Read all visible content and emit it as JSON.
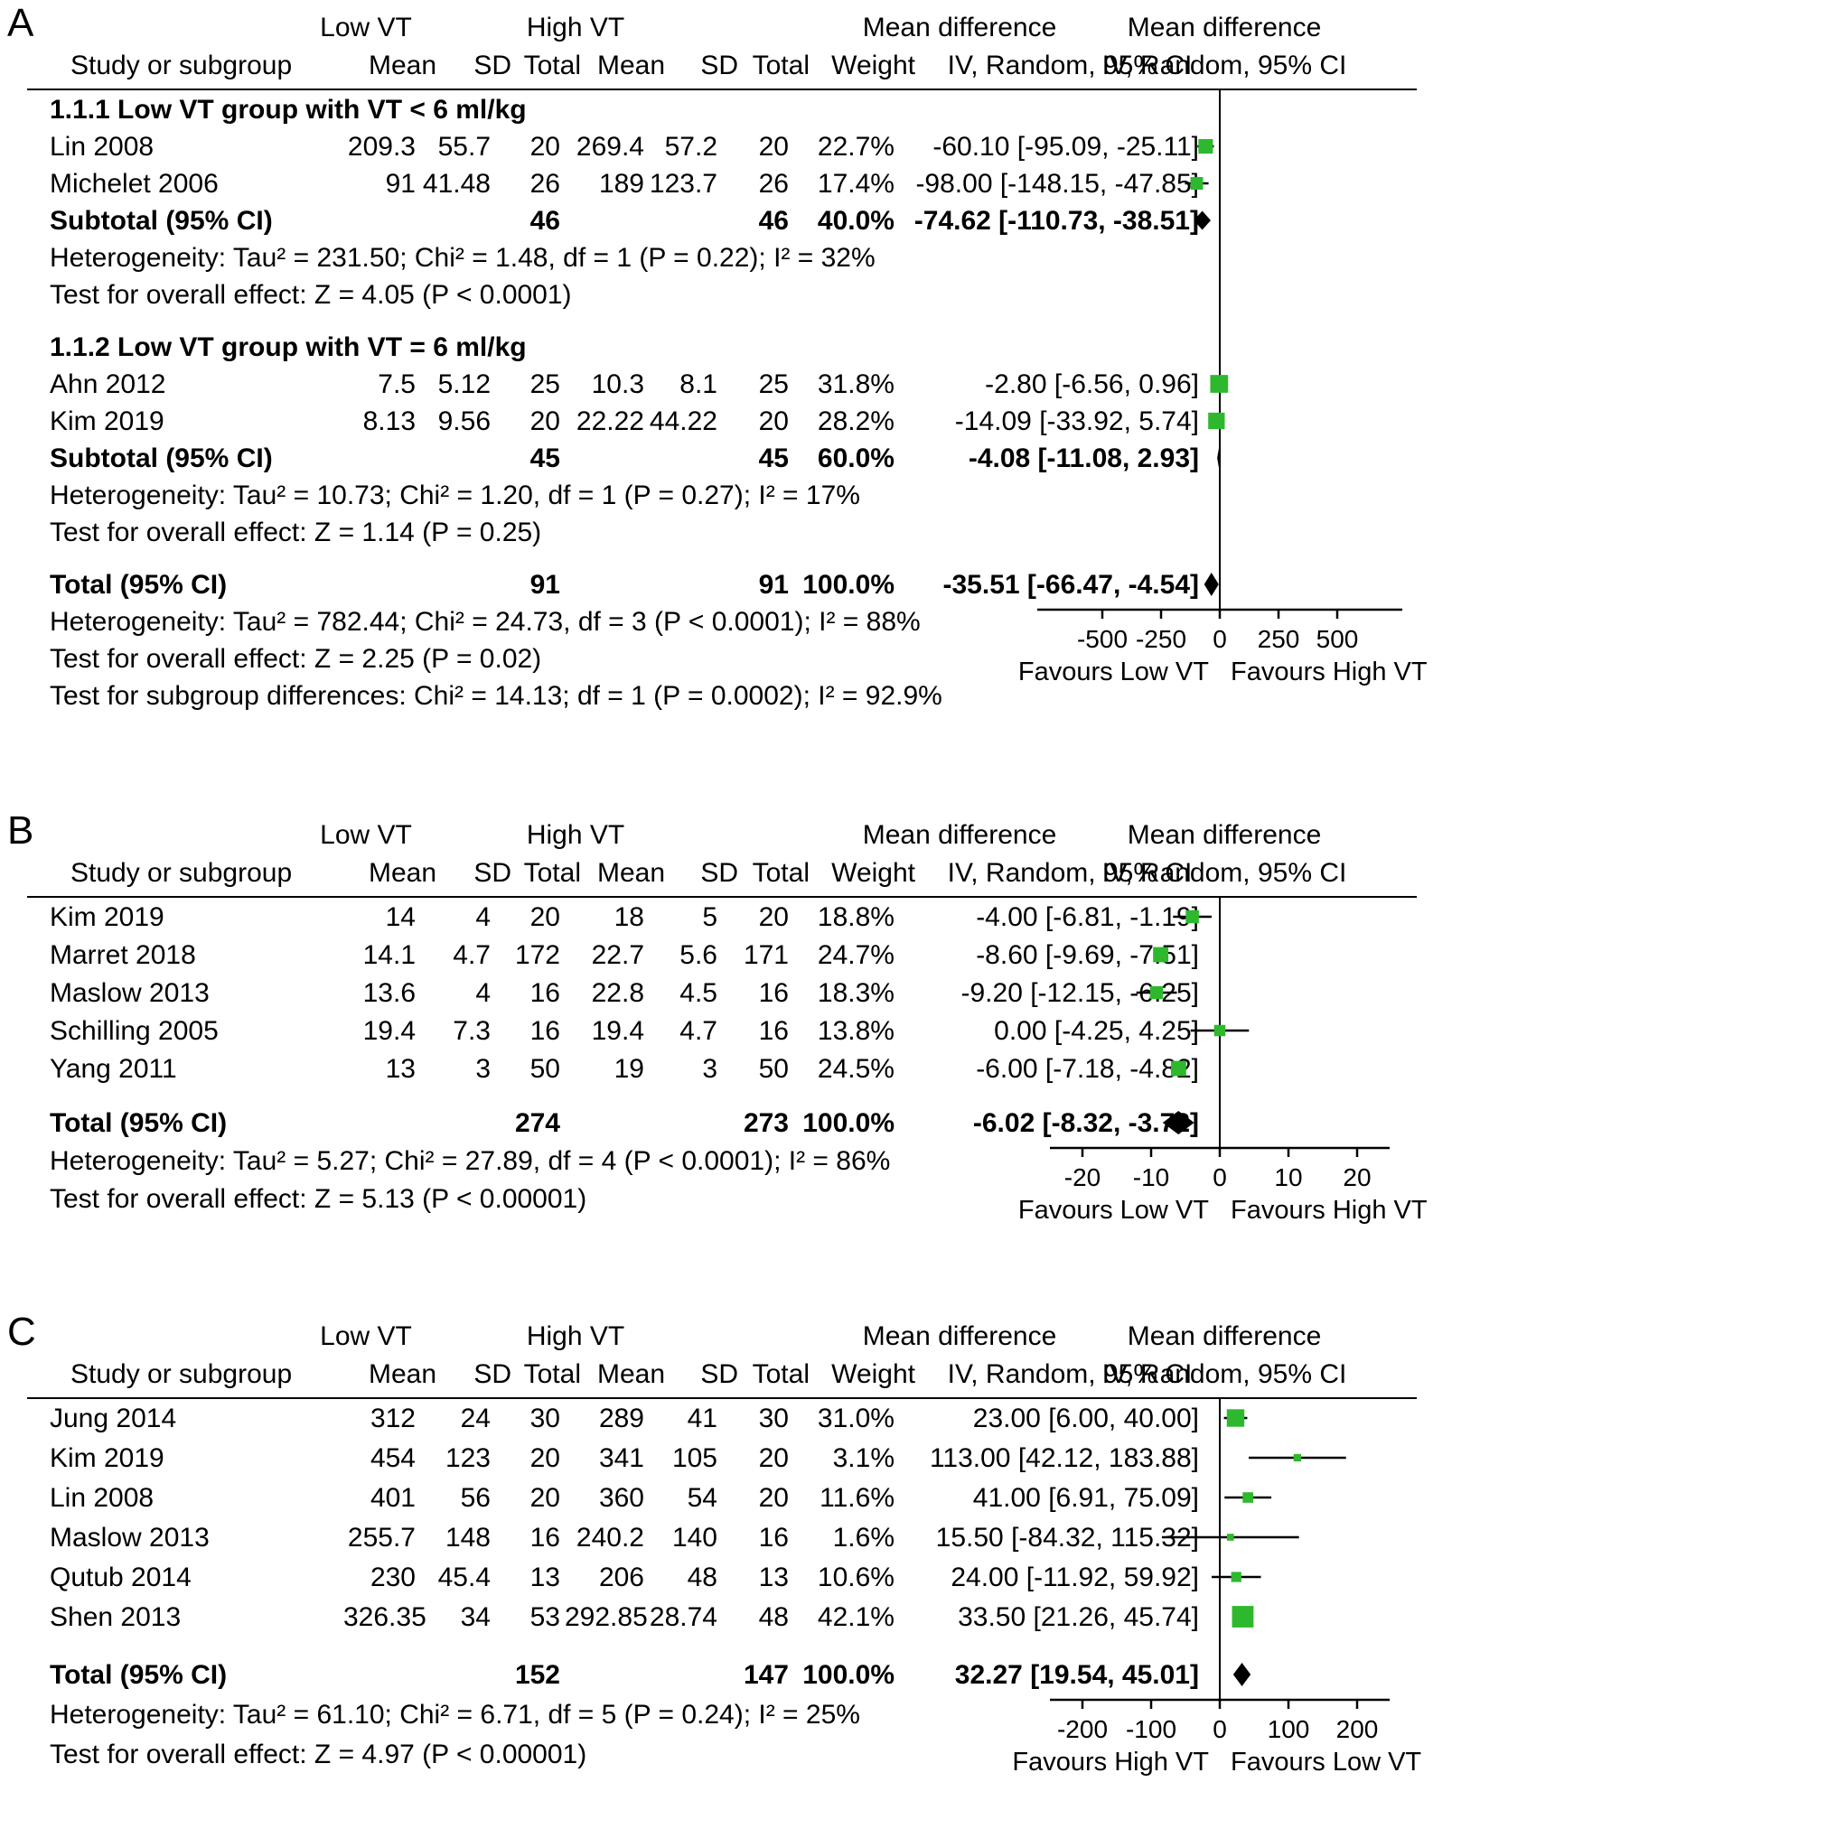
{
  "figure_type": "forest_plot_meta_analysis",
  "colors": {
    "marker": "#2eb82e",
    "line": "#000000",
    "text": "#000000",
    "background": "#ffffff"
  },
  "chart_data": {
    "type": "forest",
    "marker_color": "#2eb82e",
    "panels": [
      {
        "label": "A",
        "group1_header": "Low VT",
        "group2_header": "High VT",
        "md_header": "Mean difference",
        "method_header": "IV, Random, 95% CI",
        "study_header": "Study or subgroup",
        "col_headers": [
          "Mean",
          "SD",
          "Total",
          "Mean",
          "SD",
          "Total",
          "Weight"
        ],
        "rows": [
          {
            "type": "subgroup",
            "text": "1.1.1 Low VT group with VT < 6 ml/kg"
          },
          {
            "type": "study",
            "study": "Lin 2008",
            "m1": "209.3",
            "sd1": "55.7",
            "t1": "20",
            "m2": "269.4",
            "sd2": "57.2",
            "t2": "20",
            "w": "22.7%",
            "ci": "-60.10 [-95.09, -25.11]",
            "est": -60.1,
            "lo": -95.09,
            "hi": -25.11,
            "weight": 22.7
          },
          {
            "type": "study",
            "study": "Michelet 2006",
            "m1": "91",
            "sd1": "41.48",
            "t1": "26",
            "m2": "189",
            "sd2": "123.7",
            "t2": "26",
            "w": "17.4%",
            "ci": "-98.00 [-148.15, -47.85]",
            "est": -98.0,
            "lo": -148.15,
            "hi": -47.85,
            "weight": 17.4
          },
          {
            "type": "subtotal",
            "study": "Subtotal (95% CI)",
            "t1": "46",
            "t2": "46",
            "w": "40.0%",
            "ci": "-74.62 [-110.73, -38.51]",
            "est": -74.62,
            "lo": -110.73,
            "hi": -38.51
          },
          {
            "type": "note",
            "name": "heterogeneity-note",
            "text": "Heterogeneity: Tau² = 231.50; Chi² = 1.48, df = 1 (P = 0.22); I² = 32%"
          },
          {
            "type": "note",
            "name": "overall-effect-note",
            "text": "Test for overall effect: Z = 4.05 (P < 0.0001)"
          },
          {
            "type": "gap"
          },
          {
            "type": "subgroup",
            "text": "1.1.2 Low VT group with VT = 6 ml/kg"
          },
          {
            "type": "study",
            "study": "Ahn 2012",
            "m1": "7.5",
            "sd1": "5.12",
            "t1": "25",
            "m2": "10.3",
            "sd2": "8.1",
            "t2": "25",
            "w": "31.8%",
            "ci": "-2.80 [-6.56, 0.96]",
            "est": -2.8,
            "lo": -6.56,
            "hi": 0.96,
            "weight": 31.8
          },
          {
            "type": "study",
            "study": "Kim 2019",
            "m1": "8.13",
            "sd1": "9.56",
            "t1": "20",
            "m2": "22.22",
            "sd2": "44.22",
            "t2": "20",
            "w": "28.2%",
            "ci": "-14.09 [-33.92, 5.74]",
            "est": -14.09,
            "lo": -33.92,
            "hi": 5.74,
            "weight": 28.2
          },
          {
            "type": "subtotal",
            "study": "Subtotal (95% CI)",
            "t1": "45",
            "t2": "45",
            "w": "60.0%",
            "ci": "-4.08 [-11.08, 2.93]",
            "est": -4.08,
            "lo": -11.08,
            "hi": 2.93
          },
          {
            "type": "note",
            "name": "heterogeneity-note",
            "text": "Heterogeneity: Tau² = 10.73; Chi² = 1.20, df = 1 (P = 0.27); I² = 17%"
          },
          {
            "type": "note",
            "name": "overall-effect-note",
            "text": "Test for overall effect: Z = 1.14 (P = 0.25)"
          },
          {
            "type": "gap"
          },
          {
            "type": "total",
            "study": "Total (95% CI)",
            "t1": "91",
            "t2": "91",
            "w": "100.0%",
            "ci": "-35.51 [-66.47, -4.54]",
            "est": -35.51,
            "lo": -66.47,
            "hi": -4.54
          },
          {
            "type": "note",
            "name": "heterogeneity-note",
            "text": "Heterogeneity: Tau² = 782.44; Chi² = 24.73, df = 3 (P < 0.0001); I² = 88%"
          },
          {
            "type": "note",
            "name": "overall-effect-note",
            "text": "Test for overall effect: Z = 2.25 (P = 0.02)"
          },
          {
            "type": "note",
            "name": "subgroup-difference-note",
            "text": "Test for subgroup differences: Chi² = 14.13; df = 1 (P = 0.0002); I² = 92.9%"
          }
        ],
        "axis": {
          "ticks": [
            -500,
            -250,
            0,
            250,
            500
          ],
          "tick_labels": [
            "-500",
            "-250",
            "0",
            "250",
            "500"
          ],
          "favours_left": "Favours Low VT",
          "favours_right": "Favours High VT"
        }
      },
      {
        "label": "B",
        "group1_header": "Low VT",
        "group2_header": "High VT",
        "md_header": "Mean difference",
        "method_header": "IV, Random, 95% CI",
        "study_header": "Study or subgroup",
        "col_headers": [
          "Mean",
          "SD",
          "Total",
          "Mean",
          "SD",
          "Total",
          "Weight"
        ],
        "rows": [
          {
            "type": "study",
            "study": "Kim 2019",
            "m1": "14",
            "sd1": "4",
            "t1": "20",
            "m2": "18",
            "sd2": "5",
            "t2": "20",
            "w": "18.8%",
            "ci": "-4.00 [-6.81, -1.19]",
            "est": -4.0,
            "lo": -6.81,
            "hi": -1.19,
            "weight": 18.8
          },
          {
            "type": "study",
            "study": "Marret 2018",
            "m1": "14.1",
            "sd1": "4.7",
            "t1": "172",
            "m2": "22.7",
            "sd2": "5.6",
            "t2": "171",
            "w": "24.7%",
            "ci": "-8.60 [-9.69, -7.51]",
            "est": -8.6,
            "lo": -9.69,
            "hi": -7.51,
            "weight": 24.7
          },
          {
            "type": "study",
            "study": "Maslow 2013",
            "m1": "13.6",
            "sd1": "4",
            "t1": "16",
            "m2": "22.8",
            "sd2": "4.5",
            "t2": "16",
            "w": "18.3%",
            "ci": "-9.20 [-12.15, -6.25]",
            "est": -9.2,
            "lo": -12.15,
            "hi": -6.25,
            "weight": 18.3
          },
          {
            "type": "study",
            "study": "Schilling 2005",
            "m1": "19.4",
            "sd1": "7.3",
            "t1": "16",
            "m2": "19.4",
            "sd2": "4.7",
            "t2": "16",
            "w": "13.8%",
            "ci": "0.00 [-4.25, 4.25]",
            "est": 0.0,
            "lo": -4.25,
            "hi": 4.25,
            "weight": 13.8
          },
          {
            "type": "study",
            "study": "Yang 2011",
            "m1": "13",
            "sd1": "3",
            "t1": "50",
            "m2": "19",
            "sd2": "3",
            "t2": "50",
            "w": "24.5%",
            "ci": "-6.00 [-7.18, -4.82]",
            "est": -6.0,
            "lo": -7.18,
            "hi": -4.82,
            "weight": 24.5
          },
          {
            "type": "gap"
          },
          {
            "type": "total",
            "study": "Total (95% CI)",
            "t1": "274",
            "t2": "273",
            "w": "100.0%",
            "ci": "-6.02 [-8.32, -3.72]",
            "est": -6.02,
            "lo": -8.32,
            "hi": -3.72
          },
          {
            "type": "note",
            "name": "heterogeneity-note",
            "text": "Heterogeneity: Tau² = 5.27; Chi² = 27.89, df = 4 (P < 0.0001); I² = 86%"
          },
          {
            "type": "note",
            "name": "overall-effect-note",
            "text": "Test for overall effect: Z = 5.13 (P < 0.00001)"
          }
        ],
        "axis": {
          "ticks": [
            -20,
            -10,
            0,
            10,
            20
          ],
          "tick_labels": [
            "-20",
            "-10",
            "0",
            "10",
            "20"
          ],
          "favours_left": "Favours Low VT",
          "favours_right": "Favours High VT"
        }
      },
      {
        "label": "C",
        "group1_header": "Low VT",
        "group2_header": "High VT",
        "md_header": "Mean difference",
        "method_header": "IV, Random, 95% CI",
        "study_header": "Study or subgroup",
        "col_headers": [
          "Mean",
          "SD",
          "Total",
          "Mean",
          "SD",
          "Total",
          "Weight"
        ],
        "rows": [
          {
            "type": "study",
            "study": "Jung 2014",
            "m1": "312",
            "sd1": "24",
            "t1": "30",
            "m2": "289",
            "sd2": "41",
            "t2": "30",
            "w": "31.0%",
            "ci": "23.00 [6.00, 40.00]",
            "est": 23.0,
            "lo": 6.0,
            "hi": 40.0,
            "weight": 31.0
          },
          {
            "type": "study",
            "study": "Kim 2019",
            "m1": "454",
            "sd1": "123",
            "t1": "20",
            "m2": "341",
            "sd2": "105",
            "t2": "20",
            "w": "3.1%",
            "ci": "113.00 [42.12, 183.88]",
            "est": 113.0,
            "lo": 42.12,
            "hi": 183.88,
            "weight": 3.1
          },
          {
            "type": "study",
            "study": "Lin 2008",
            "m1": "401",
            "sd1": "56",
            "t1": "20",
            "m2": "360",
            "sd2": "54",
            "t2": "20",
            "w": "11.6%",
            "ci": "41.00 [6.91, 75.09]",
            "est": 41.0,
            "lo": 6.91,
            "hi": 75.09,
            "weight": 11.6
          },
          {
            "type": "study",
            "study": "Maslow 2013",
            "m1": "255.7",
            "sd1": "148",
            "t1": "16",
            "m2": "240.2",
            "sd2": "140",
            "t2": "16",
            "w": "1.6%",
            "ci": "15.50 [-84.32, 115.32]",
            "est": 15.5,
            "lo": -84.32,
            "hi": 115.32,
            "weight": 1.6
          },
          {
            "type": "study",
            "study": "Qutub 2014",
            "m1": "230",
            "sd1": "45.4",
            "t1": "13",
            "m2": "206",
            "sd2": "48",
            "t2": "13",
            "w": "10.6%",
            "ci": "24.00 [-11.92, 59.92]",
            "est": 24.0,
            "lo": -11.92,
            "hi": 59.92,
            "weight": 10.6
          },
          {
            "type": "study",
            "study": "Shen 2013",
            "m1": "326.35",
            "sd1": "34",
            "t1": "53",
            "m2": "292.85",
            "sd2": "28.74",
            "t2": "48",
            "w": "42.1%",
            "ci": "33.50 [21.26, 45.74]",
            "est": 33.5,
            "lo": 21.26,
            "hi": 45.74,
            "weight": 42.1
          },
          {
            "type": "gap"
          },
          {
            "type": "total",
            "study": "Total (95% CI)",
            "t1": "152",
            "t2": "147",
            "w": "100.0%",
            "ci": "32.27 [19.54, 45.01]",
            "est": 32.27,
            "lo": 19.54,
            "hi": 45.01
          },
          {
            "type": "note",
            "name": "heterogeneity-note",
            "text": "Heterogeneity: Tau² = 61.10; Chi² = 6.71, df = 5 (P = 0.24); I² = 25%"
          },
          {
            "type": "note",
            "name": "overall-effect-note",
            "text": "Test for overall effect: Z = 4.97 (P < 0.00001)"
          }
        ],
        "axis": {
          "ticks": [
            -200,
            -100,
            0,
            100,
            200
          ],
          "tick_labels": [
            "-200",
            "-100",
            "0",
            "100",
            "200"
          ],
          "favours_left": "Favours High VT",
          "favours_right": "Favours Low VT"
        }
      }
    ]
  }
}
